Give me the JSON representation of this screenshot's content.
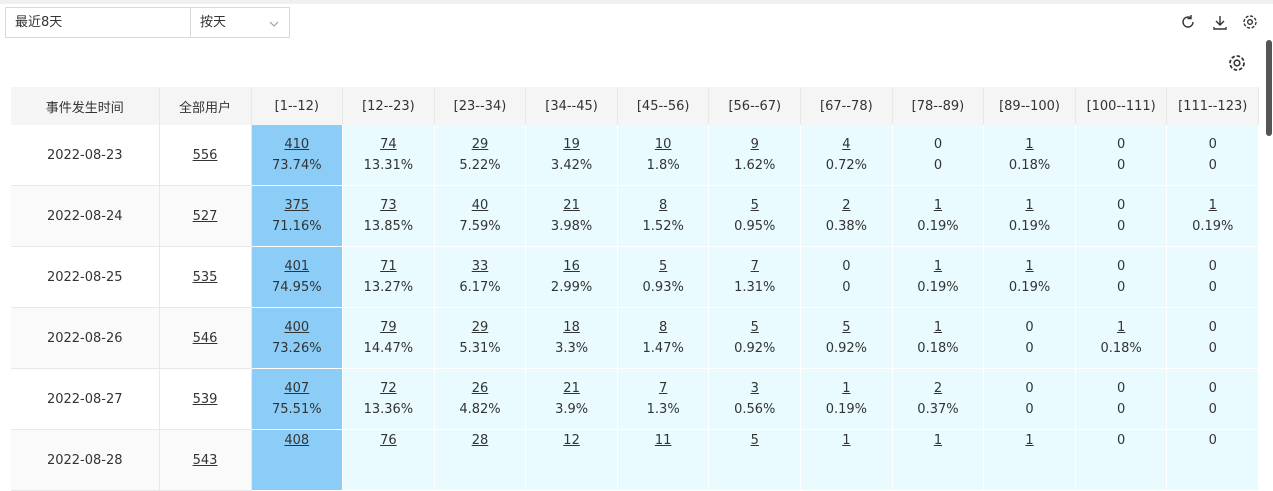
{
  "toolbar": {
    "range_select": "最近8天",
    "granularity_select": "按天"
  },
  "table": {
    "headers": [
      "事件发生时间",
      "全部用户",
      "[1--12)",
      "[12--23)",
      "[23--34)",
      "[34--45)",
      "[45--56)",
      "[56--67)",
      "[67--78)",
      "[78--89)",
      "[89--100)",
      "[100--111)",
      "[111--123)"
    ],
    "rows": [
      {
        "date": "2022-08-23",
        "total": 556,
        "cells": [
          {
            "count": 410,
            "pct": "73.74%"
          },
          {
            "count": 74,
            "pct": "13.31%"
          },
          {
            "count": 29,
            "pct": "5.22%"
          },
          {
            "count": 19,
            "pct": "3.42%"
          },
          {
            "count": 10,
            "pct": "1.8%"
          },
          {
            "count": 9,
            "pct": "1.62%"
          },
          {
            "count": 4,
            "pct": "0.72%"
          },
          {
            "count": 0,
            "pct": "0"
          },
          {
            "count": 1,
            "pct": "0.18%"
          },
          {
            "count": 0,
            "pct": "0"
          },
          {
            "count": 0,
            "pct": "0"
          }
        ]
      },
      {
        "date": "2022-08-24",
        "total": 527,
        "cells": [
          {
            "count": 375,
            "pct": "71.16%"
          },
          {
            "count": 73,
            "pct": "13.85%"
          },
          {
            "count": 40,
            "pct": "7.59%"
          },
          {
            "count": 21,
            "pct": "3.98%"
          },
          {
            "count": 8,
            "pct": "1.52%"
          },
          {
            "count": 5,
            "pct": "0.95%"
          },
          {
            "count": 2,
            "pct": "0.38%"
          },
          {
            "count": 1,
            "pct": "0.19%"
          },
          {
            "count": 1,
            "pct": "0.19%"
          },
          {
            "count": 0,
            "pct": "0"
          },
          {
            "count": 1,
            "pct": "0.19%"
          }
        ]
      },
      {
        "date": "2022-08-25",
        "total": 535,
        "cells": [
          {
            "count": 401,
            "pct": "74.95%"
          },
          {
            "count": 71,
            "pct": "13.27%"
          },
          {
            "count": 33,
            "pct": "6.17%"
          },
          {
            "count": 16,
            "pct": "2.99%"
          },
          {
            "count": 5,
            "pct": "0.93%"
          },
          {
            "count": 7,
            "pct": "1.31%"
          },
          {
            "count": 0,
            "pct": "0"
          },
          {
            "count": 1,
            "pct": "0.19%"
          },
          {
            "count": 1,
            "pct": "0.19%"
          },
          {
            "count": 0,
            "pct": "0"
          },
          {
            "count": 0,
            "pct": "0"
          }
        ]
      },
      {
        "date": "2022-08-26",
        "total": 546,
        "cells": [
          {
            "count": 400,
            "pct": "73.26%"
          },
          {
            "count": 79,
            "pct": "14.47%"
          },
          {
            "count": 29,
            "pct": "5.31%"
          },
          {
            "count": 18,
            "pct": "3.3%"
          },
          {
            "count": 8,
            "pct": "1.47%"
          },
          {
            "count": 5,
            "pct": "0.92%"
          },
          {
            "count": 5,
            "pct": "0.92%"
          },
          {
            "count": 1,
            "pct": "0.18%"
          },
          {
            "count": 0,
            "pct": "0"
          },
          {
            "count": 1,
            "pct": "0.18%"
          },
          {
            "count": 0,
            "pct": "0"
          }
        ]
      },
      {
        "date": "2022-08-27",
        "total": 539,
        "cells": [
          {
            "count": 407,
            "pct": "75.51%"
          },
          {
            "count": 72,
            "pct": "13.36%"
          },
          {
            "count": 26,
            "pct": "4.82%"
          },
          {
            "count": 21,
            "pct": "3.9%"
          },
          {
            "count": 7,
            "pct": "1.3%"
          },
          {
            "count": 3,
            "pct": "0.56%"
          },
          {
            "count": 1,
            "pct": "0.19%"
          },
          {
            "count": 2,
            "pct": "0.37%"
          },
          {
            "count": 0,
            "pct": "0"
          },
          {
            "count": 0,
            "pct": "0"
          },
          {
            "count": 0,
            "pct": "0"
          }
        ]
      },
      {
        "date": "2022-08-28",
        "total": 543,
        "cells": [
          {
            "count": 408
          },
          {
            "count": 76
          },
          {
            "count": 28
          },
          {
            "count": 12
          },
          {
            "count": 11
          },
          {
            "count": 5
          },
          {
            "count": 1
          },
          {
            "count": 1
          },
          {
            "count": 1
          },
          {
            "count": 0
          },
          {
            "count": 0
          }
        ]
      }
    ]
  }
}
